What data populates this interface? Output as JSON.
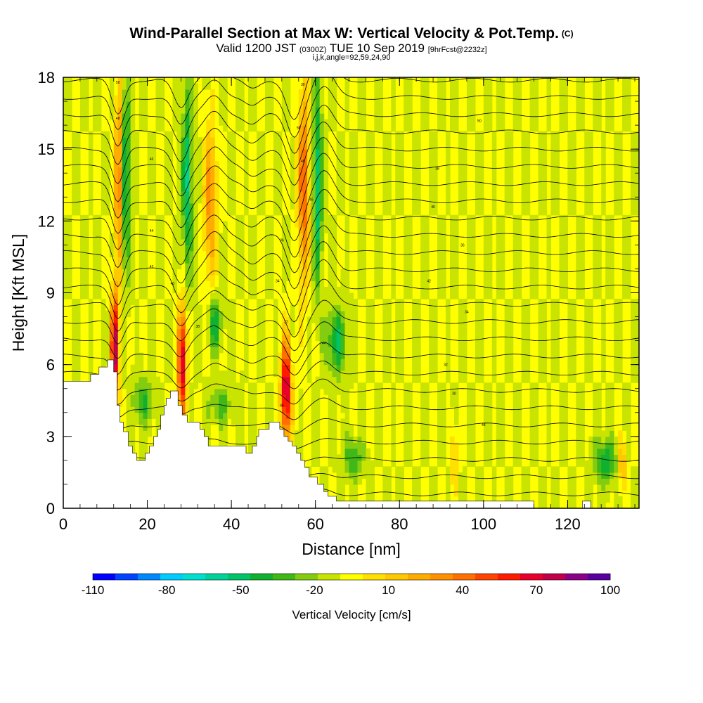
{
  "title": {
    "main": "Wind-Parallel Section at Max W: Vertical Velocity & Pot.Temp.",
    "copyright": "(C)",
    "valid_prefix": "Valid 1200 JST",
    "valid_utc": "(0300Z)",
    "valid_date": "TUE 10 Sep 2019",
    "forecast": "[9hrFcst@2232z]",
    "indices": "i,j,k,angle=92,59,24,90"
  },
  "chart_data": {
    "type": "heatmap",
    "xlabel": "Distance [nm]",
    "ylabel": "Height [Kft MSL]",
    "xlim": [
      0,
      137
    ],
    "ylim": [
      0,
      18
    ],
    "x_ticks": [
      "0",
      "20",
      "40",
      "60",
      "80",
      "100",
      "120"
    ],
    "y_ticks": [
      "0",
      "3",
      "6",
      "9",
      "12",
      "15",
      "18"
    ],
    "colorbar": {
      "title": "Vertical Velocity [cm/s]",
      "labels": [
        "-110",
        "-80",
        "-50",
        "-20",
        "10",
        "40",
        "70",
        "100"
      ],
      "min": -110,
      "max": 100,
      "step": 10,
      "colors": [
        "#0000ff",
        "#0044ff",
        "#0088ff",
        "#00ccff",
        "#00e0d0",
        "#00d29a",
        "#00c468",
        "#10b030",
        "#40b818",
        "#84cc10",
        "#c8e400",
        "#ffff00",
        "#ffe000",
        "#ffc800",
        "#ffac00",
        "#ff9000",
        "#ff7000",
        "#ff4400",
        "#ff1a00",
        "#e8002a",
        "#c0004a",
        "#8c0088",
        "#5a00a0"
      ]
    },
    "background_level": 0,
    "updrafts": [
      {
        "x0": 11,
        "x1": 13.5,
        "y0": 4.3,
        "y1": 9.2,
        "value": 100
      },
      {
        "x0": 12,
        "x1": 14.5,
        "y0": 9.5,
        "y1": 18,
        "value": 60
      },
      {
        "x0": 27,
        "x1": 29.5,
        "y0": 3.6,
        "y1": 8.6,
        "value": 100
      },
      {
        "x0": 33,
        "x1": 37,
        "y0": 9,
        "y1": 16.5,
        "value": 45
      },
      {
        "x0": 51.5,
        "x1": 54.5,
        "y0": 2.6,
        "y1": 7.3,
        "value": 100
      },
      {
        "x0": 55.5,
        "x1": 59,
        "y0": 9,
        "y1": 18,
        "value": 60
      },
      {
        "x0": 92,
        "x1": 94,
        "y0": 0.8,
        "y1": 3.5,
        "value": 30
      },
      {
        "x0": 132,
        "x1": 134,
        "y0": 0.8,
        "y1": 3,
        "value": 40
      }
    ],
    "downdrafts": [
      {
        "x0": 13.5,
        "x1": 16,
        "y0": 9.5,
        "y1": 18,
        "value": -50
      },
      {
        "x0": 28,
        "x1": 31,
        "y0": 9.5,
        "y1": 18,
        "value": -50
      },
      {
        "x0": 34,
        "x1": 38,
        "y0": 6.5,
        "y1": 9,
        "value": -40
      },
      {
        "x0": 59,
        "x1": 62,
        "y0": 9,
        "y1": 18,
        "value": -50
      },
      {
        "x0": 62,
        "x1": 68,
        "y0": 5.5,
        "y1": 8.5,
        "value": -40
      },
      {
        "x0": 16,
        "x1": 22,
        "y0": 3.5,
        "y1": 5.5,
        "value": -30
      },
      {
        "x0": 34,
        "x1": 41,
        "y0": 3.5,
        "y1": 5.2,
        "value": -25
      },
      {
        "x0": 66,
        "x1": 72,
        "y0": 1.2,
        "y1": 3,
        "value": -30
      },
      {
        "x0": 126,
        "x1": 132,
        "y0": 1,
        "y1": 3,
        "value": -40
      }
    ],
    "terrain_profile": {
      "x": [
        0,
        5,
        6.5,
        7.5,
        8.5,
        9.5,
        10.5,
        12,
        12.8,
        13.5,
        14.3,
        15.5,
        16.5,
        17.5,
        18.5,
        19.5,
        20.5,
        21.5,
        22.5,
        23.2,
        24,
        24.5,
        25.5,
        26.5,
        27.3,
        28.3,
        29.5,
        31,
        32.5,
        33.5,
        34.5,
        35.5,
        36.5,
        38.5,
        40.5,
        42.5,
        43.5,
        45,
        46,
        46.5,
        49,
        50.5,
        51.5,
        52.5,
        53.5,
        54.5,
        55.5,
        56.5,
        57.5,
        58.5,
        60.5,
        62,
        63,
        64,
        65,
        66,
        67,
        70.5,
        110,
        112,
        123,
        123.5,
        125,
        125.5,
        137
      ],
      "h": [
        5.3,
        5.3,
        5.6,
        5.6,
        5.9,
        5.9,
        6.2,
        5.7,
        4.3,
        3.6,
        3.2,
        2.6,
        2.3,
        2.0,
        2.0,
        2.3,
        2.6,
        3.0,
        3.3,
        3.9,
        4.3,
        4.6,
        4.9,
        4.9,
        4.3,
        3.9,
        3.6,
        3.6,
        3.3,
        3.0,
        2.6,
        2.6,
        2.6,
        2.6,
        2.6,
        2.6,
        2.3,
        2.6,
        3.0,
        3.3,
        3.6,
        3.6,
        3.3,
        3.0,
        2.8,
        2.6,
        2.3,
        2.0,
        1.7,
        1.3,
        1.0,
        0.7,
        0.5,
        0.5,
        0.3,
        0.3,
        0.3,
        0.3,
        0.3,
        0.0,
        0.0,
        0.3,
        0.3,
        0.0,
        0.0
      ]
    },
    "theta_contours": {
      "interval_k": 1,
      "labels": [
        "50",
        "48",
        "46",
        "44",
        "42",
        "40",
        "38",
        "36",
        "34",
        "32",
        "30"
      ]
    }
  }
}
